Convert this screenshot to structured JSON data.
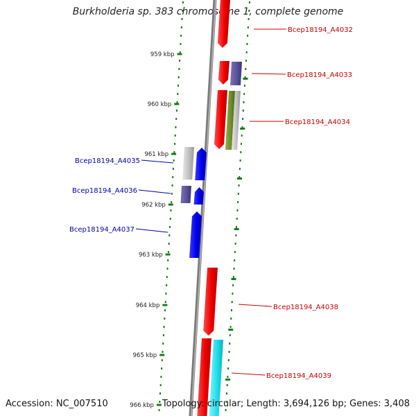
{
  "title": "Burkholderia sp. 383 chromosome 1, complete genome",
  "footer": {
    "accession": "Accession: NC_007510",
    "summary": "Topology: circular; Length: 3,694,126 bp; Genes: 3,408"
  },
  "colors": {
    "forward_label": "#cc0000",
    "reverse_label": "#0000aa",
    "tick": "#1a7a1a",
    "backbone": "#7a7a7a"
  },
  "ticks": [
    "959 kbp",
    "960 kbp",
    "961 kbp",
    "962 kbp",
    "963 kbp",
    "964 kbp",
    "965 kbp",
    "966 kbp"
  ],
  "genes": [
    {
      "label": "Bcep18194_A4032",
      "strand": "forward"
    },
    {
      "label": "Bcep18194_A4033",
      "strand": "forward"
    },
    {
      "label": "Bcep18194_A4034",
      "strand": "forward"
    },
    {
      "label": "Bcep18194_A4035",
      "strand": "reverse"
    },
    {
      "label": "Bcep18194_A4036",
      "strand": "reverse"
    },
    {
      "label": "Bcep18194_A4037",
      "strand": "reverse"
    },
    {
      "label": "Bcep18194_A4038",
      "strand": "forward"
    },
    {
      "label": "Bcep18194_A4039",
      "strand": "forward"
    }
  ]
}
